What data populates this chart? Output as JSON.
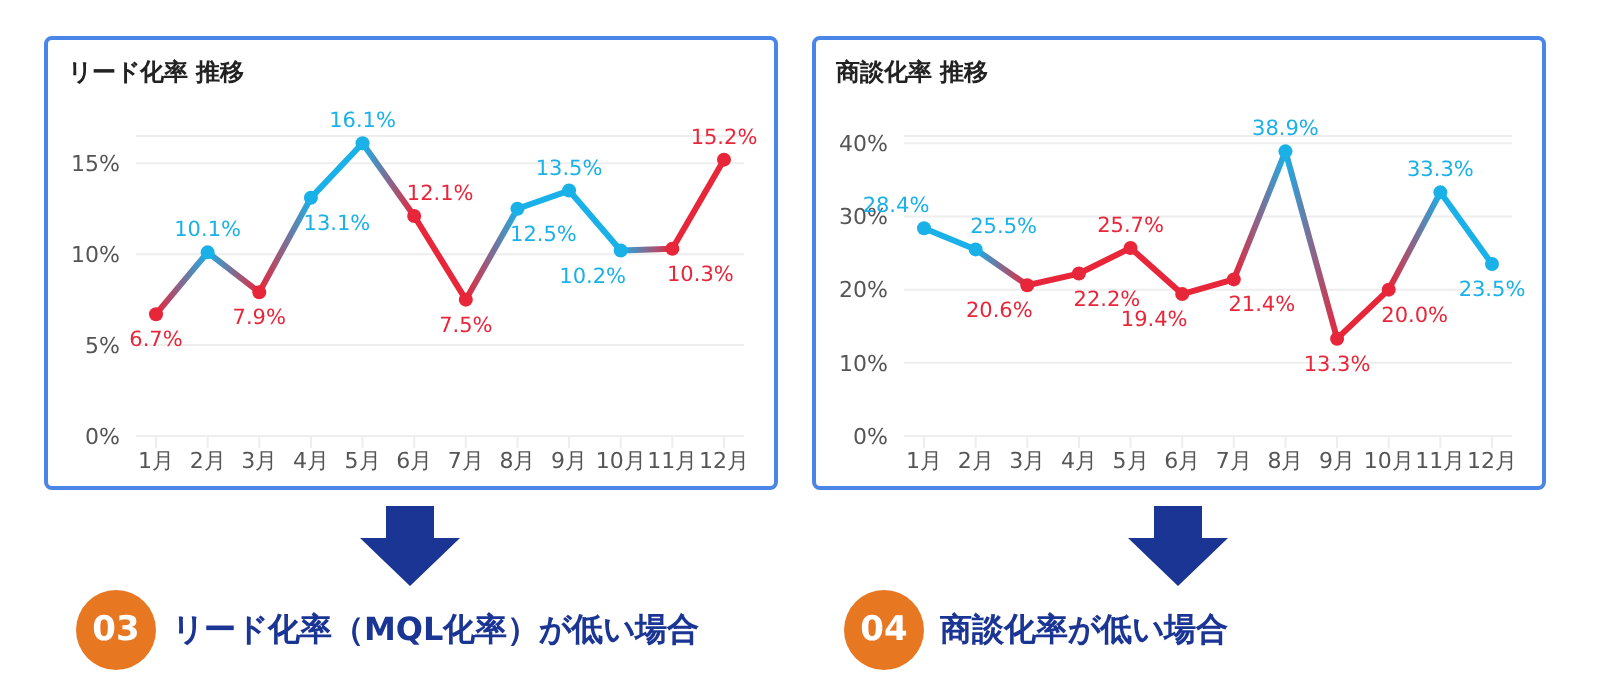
{
  "chart_data": [
    {
      "type": "line",
      "title": "リード化率 推移",
      "categories": [
        "1月",
        "2月",
        "3月",
        "4月",
        "5月",
        "6月",
        "7月",
        "8月",
        "9月",
        "10月",
        "11月",
        "12月"
      ],
      "series": [
        {
          "values": [
            6.7,
            10.1,
            7.9,
            13.1,
            16.1,
            12.1,
            7.5,
            12.5,
            13.5,
            10.2,
            10.3,
            15.2
          ],
          "colors": [
            "#e8263a",
            "#1ab0e8",
            "#e8263a",
            "#1ab0e8",
            "#1ab0e8",
            "#e8263a",
            "#e8263a",
            "#1ab0e8",
            "#1ab0e8",
            "#1ab0e8",
            "#e8263a",
            "#e8263a"
          ],
          "value_labels": [
            "6.7%",
            "10.1%",
            "7.9%",
            "13.1%",
            "16.1%",
            "12.1%",
            "7.5%",
            "12.5%",
            "13.5%",
            "10.2%",
            "10.3%",
            "15.2%"
          ]
        }
      ],
      "ylim": [
        0,
        16.5
      ],
      "yticks": [
        {
          "value": 0,
          "label": "0%"
        },
        {
          "value": 5,
          "label": "5%"
        },
        {
          "value": 10,
          "label": "10%"
        },
        {
          "value": 15,
          "label": "15%"
        }
      ],
      "grid": "y",
      "marker": "circle",
      "line_style": "solid",
      "legend": false,
      "annotations": [
        "03",
        "リード化率（MQL化率）が低い場合"
      ]
    },
    {
      "type": "line",
      "title": "商談化率 推移",
      "categories": [
        "1月",
        "2月",
        "3月",
        "4月",
        "5月",
        "6月",
        "7月",
        "8月",
        "9月",
        "10月",
        "11月",
        "12月"
      ],
      "series": [
        {
          "values": [
            28.4,
            25.5,
            20.6,
            22.2,
            25.7,
            19.4,
            21.4,
            38.9,
            13.3,
            20.0,
            33.3,
            23.5
          ],
          "colors": [
            "#1ab0e8",
            "#1ab0e8",
            "#e8263a",
            "#e8263a",
            "#e8263a",
            "#e8263a",
            "#e8263a",
            "#1ab0e8",
            "#e8263a",
            "#e8263a",
            "#1ab0e8",
            "#1ab0e8"
          ],
          "value_labels": [
            "28.4%",
            "25.5%",
            "20.6%",
            "22.2%",
            "25.7%",
            "19.4%",
            "21.4%",
            "38.9%",
            "13.3%",
            "20.0%",
            "33.3%",
            "23.5%"
          ]
        }
      ],
      "ylim": [
        0,
        41
      ],
      "yticks": [
        {
          "value": 0,
          "label": "0%"
        },
        {
          "value": 10,
          "label": "10%"
        },
        {
          "value": 20,
          "label": "20%"
        },
        {
          "value": 30,
          "label": "30%"
        },
        {
          "value": 40,
          "label": "40%"
        }
      ],
      "grid": "y",
      "marker": "circle",
      "line_style": "solid",
      "legend": false,
      "annotations": [
        "04",
        "商談化率が低い場合"
      ]
    }
  ]
}
